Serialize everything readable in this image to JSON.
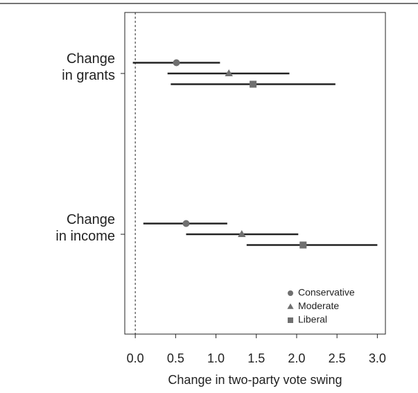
{
  "chart_data": {
    "type": "dot-interval",
    "x_label": "Change in two-party vote swing",
    "categories": [
      "Change\nin grants",
      "Change\nin income"
    ],
    "xlim": [
      -0.13,
      3.1
    ],
    "xticks": [
      {
        "value": 0,
        "label": "0.0"
      },
      {
        "value": 0.5,
        "label": "0.5"
      },
      {
        "value": 1,
        "label": "1.0"
      },
      {
        "value": 1.5,
        "label": "1.5"
      },
      {
        "value": 2,
        "label": "2.0"
      },
      {
        "value": 2.5,
        "label": "2.5"
      },
      {
        "value": 3,
        "label": "3.0"
      }
    ],
    "reference_line": 0,
    "legend": "lower right",
    "series": [
      {
        "name": "Conservative",
        "color": "#707070",
        "marker": "circle",
        "values": [
          0.51,
          0.63
        ],
        "lower": [
          -0.03,
          0.1
        ],
        "upper": [
          1.05,
          1.14
        ]
      },
      {
        "name": "Moderate",
        "color": "#707070",
        "marker": "triangle",
        "values": [
          1.16,
          1.32
        ],
        "lower": [
          0.4,
          0.63
        ],
        "upper": [
          1.91,
          2.02
        ]
      },
      {
        "name": "Liberal",
        "color": "#707070",
        "marker": "square",
        "values": [
          1.46,
          2.08
        ],
        "lower": [
          0.44,
          1.38
        ],
        "upper": [
          2.48,
          3.0
        ]
      }
    ]
  }
}
